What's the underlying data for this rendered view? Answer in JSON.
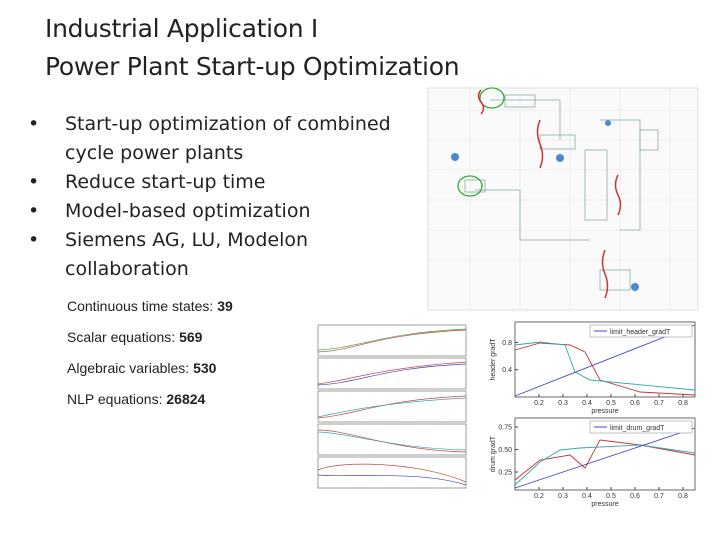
{
  "title": [
    "Industrial Application I",
    "Power Plant Start-up Optimization"
  ],
  "bullets": [
    [
      "Start-up optimization of combined",
      "cycle power plants"
    ],
    [
      "Reduce start-up time"
    ],
    [
      "Model-based optimization"
    ],
    [
      "Siemens AG, LU, Modelon",
      "collaboration"
    ]
  ],
  "stats": [
    {
      "label": "Continuous time states:",
      "value": 39
    },
    {
      "label": "Scalar equations:",
      "value": 569
    },
    {
      "label": "Algebraic variables:",
      "value": 530
    },
    {
      "label": "NLP equations:",
      "value": 26824
    }
  ],
  "plots": [
    {
      "legend": "limit_header_gradT",
      "ylabel": "header gradT",
      "xlabel": "pressure",
      "xlim": [
        0.1,
        0.85
      ],
      "ylim": [
        0,
        1.1
      ],
      "xticks": [
        0.2,
        0.3,
        0.4,
        0.5,
        0.6,
        0.7,
        0.8
      ],
      "yticks": [
        0.4,
        0.8
      ]
    },
    {
      "legend": "limit_drum_gradT",
      "ylabel": "drum gradT",
      "xlabel": "pressure",
      "xlim": [
        0.1,
        0.85
      ],
      "ylim": [
        0.05,
        0.85
      ],
      "xticks": [
        0.2,
        0.3,
        0.4,
        0.5,
        0.6,
        0.7,
        0.8
      ],
      "yticks": [
        {
          "value": 0.25,
          "label": "0.25"
        },
        {
          "value": 0.5,
          "label": "0.50"
        },
        {
          "value": 0.75,
          "label": "0.75"
        }
      ]
    }
  ]
}
